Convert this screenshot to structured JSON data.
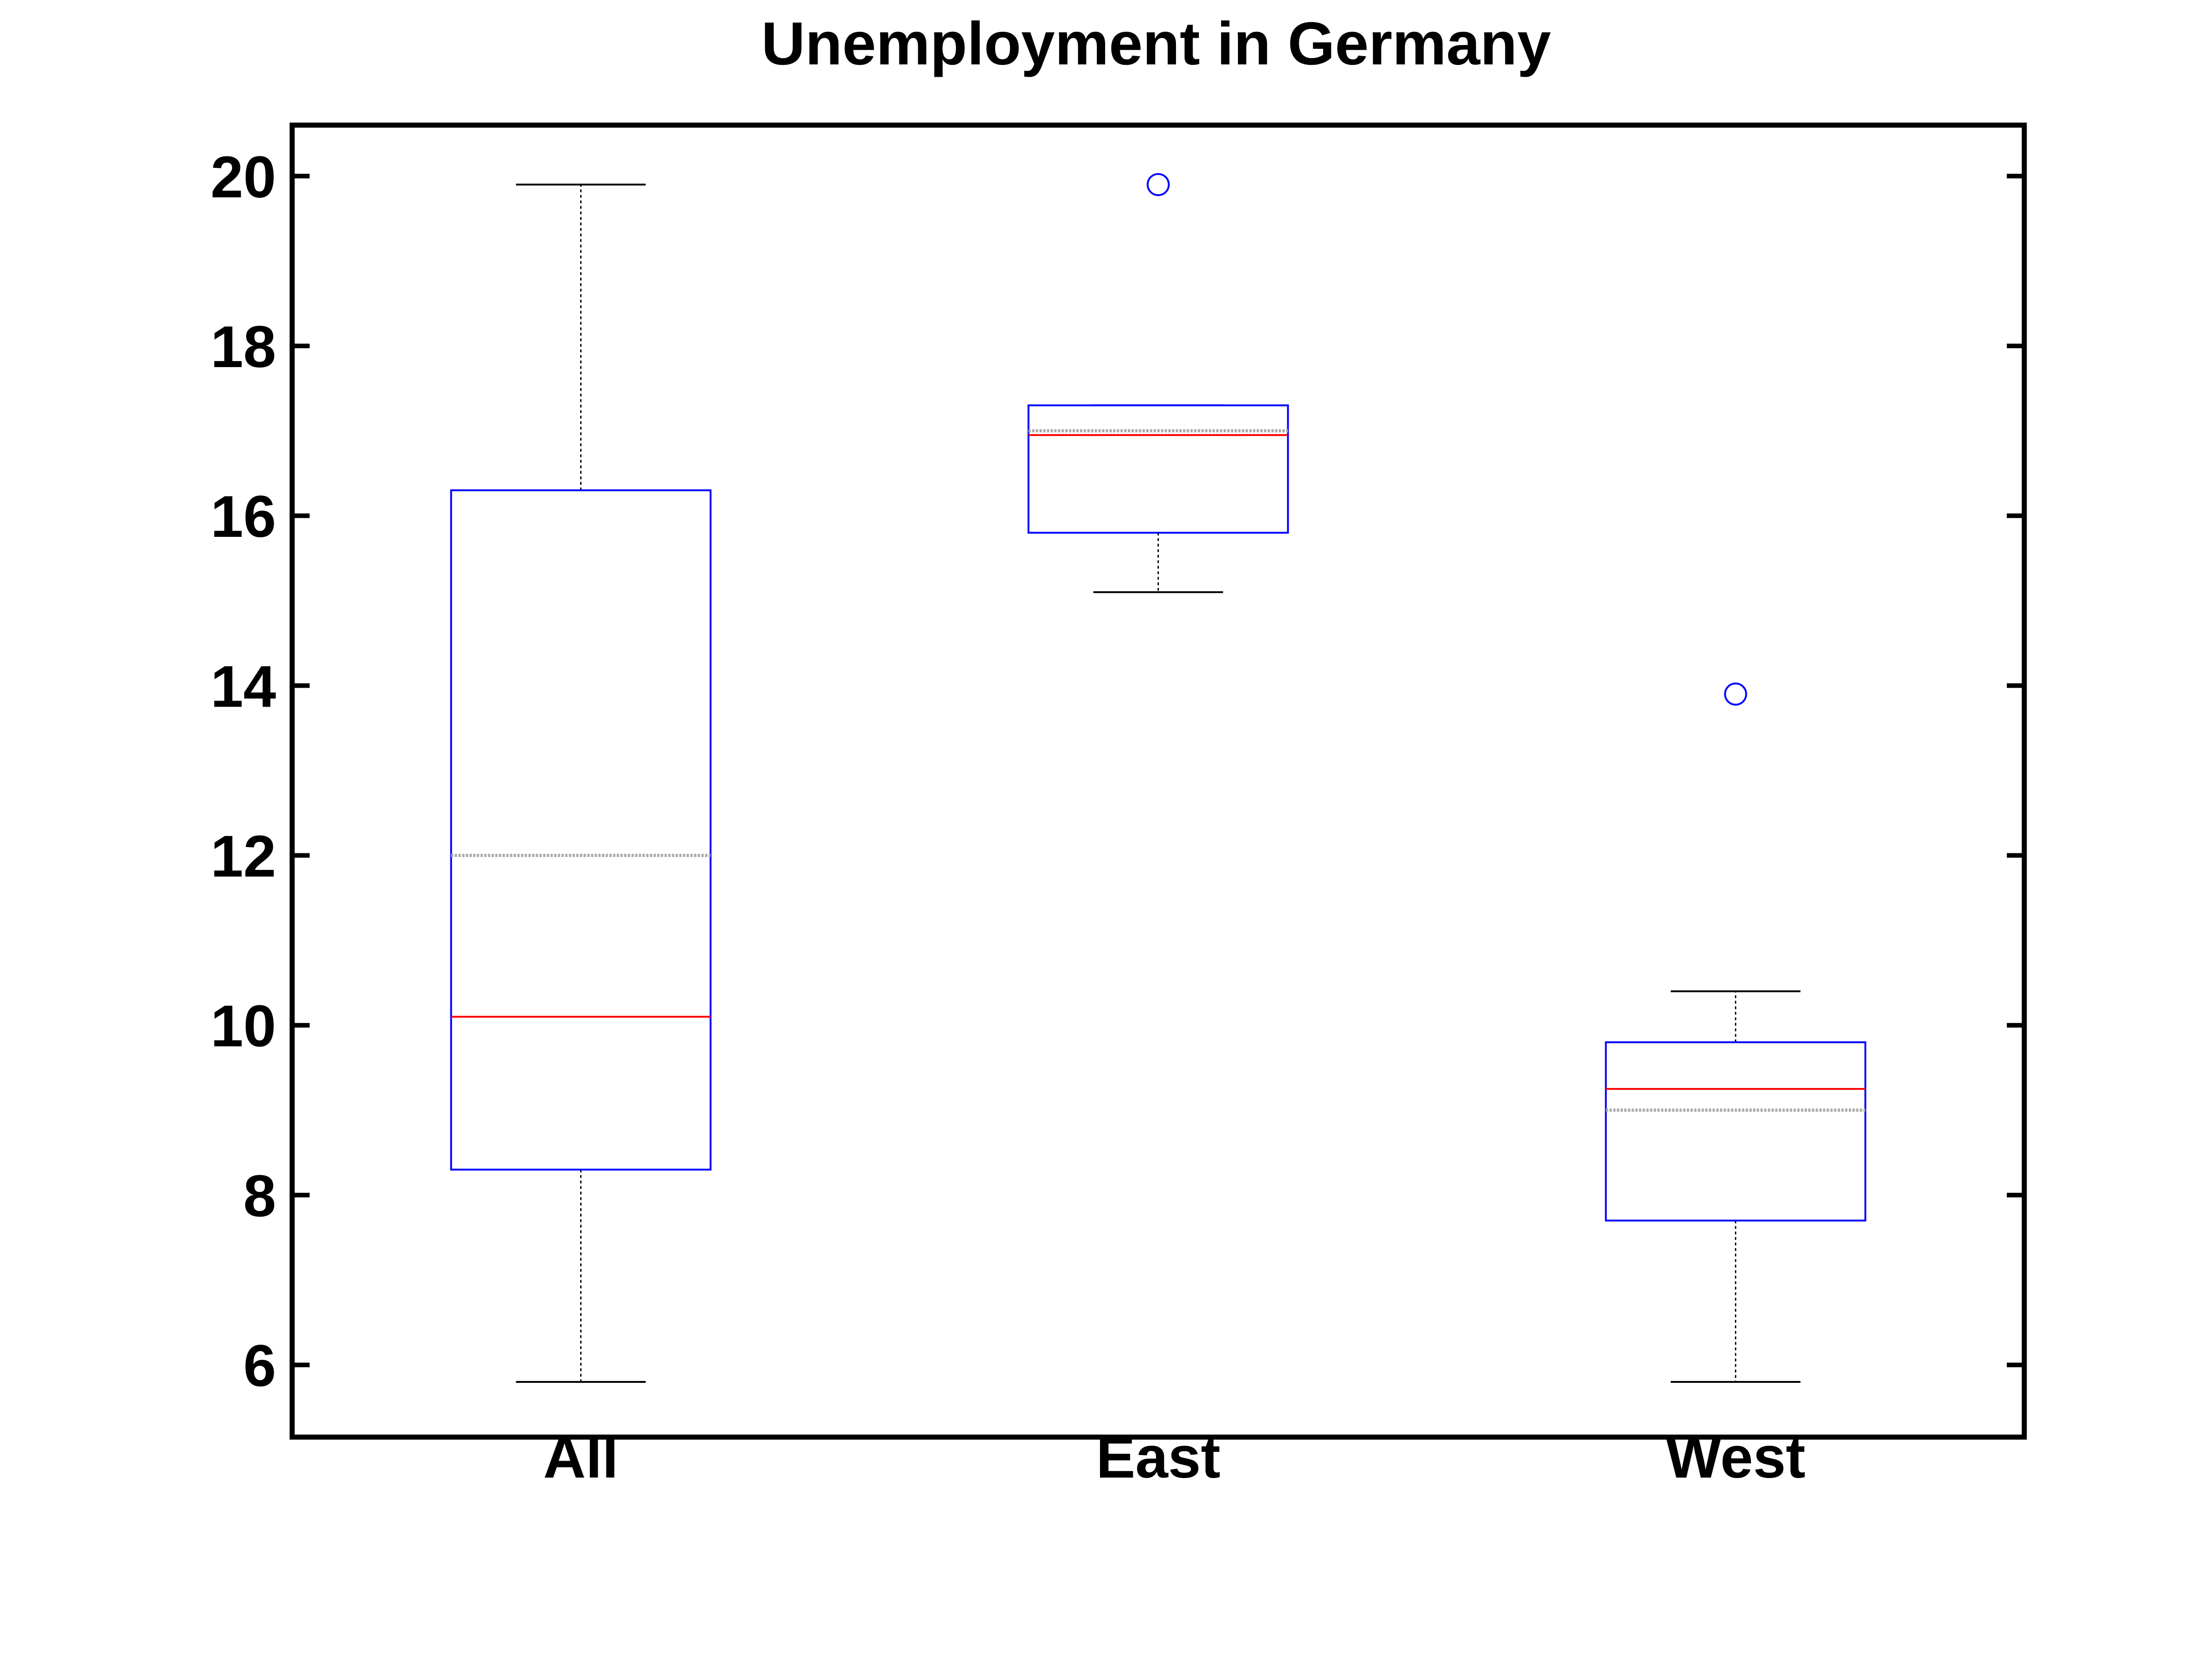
{
  "chart_data": {
    "type": "boxplot",
    "title": "Unemployment in Germany",
    "xlabel": "",
    "ylabel": "",
    "ylim": [
      5.15,
      20.6
    ],
    "yticks": [
      6,
      8,
      10,
      12,
      14,
      16,
      18,
      20
    ],
    "grid": false,
    "categories": [
      "All",
      "East",
      "West"
    ],
    "boxes": [
      {
        "name": "All",
        "whisker_low": 5.8,
        "q1": 8.3,
        "median": 10.1,
        "mean": 12.0,
        "q3": 16.3,
        "whisker_high": 19.9,
        "outliers": []
      },
      {
        "name": "East",
        "whisker_low": 15.1,
        "q1": 15.8,
        "median": 16.95,
        "mean": 17.0,
        "q3": 17.3,
        "whisker_high": 17.3,
        "outliers": [
          19.9
        ]
      },
      {
        "name": "West",
        "whisker_low": 5.8,
        "q1": 7.7,
        "median": 9.25,
        "mean": 9.0,
        "q3": 9.8,
        "whisker_high": 10.4,
        "outliers": [
          13.9
        ]
      }
    ],
    "colors": {
      "box": "#0000ff",
      "median": "#ff0000",
      "mean": "#aaaaaa",
      "whisker": "#000000",
      "outlier": "#0000ff",
      "axis": "#000000"
    }
  }
}
